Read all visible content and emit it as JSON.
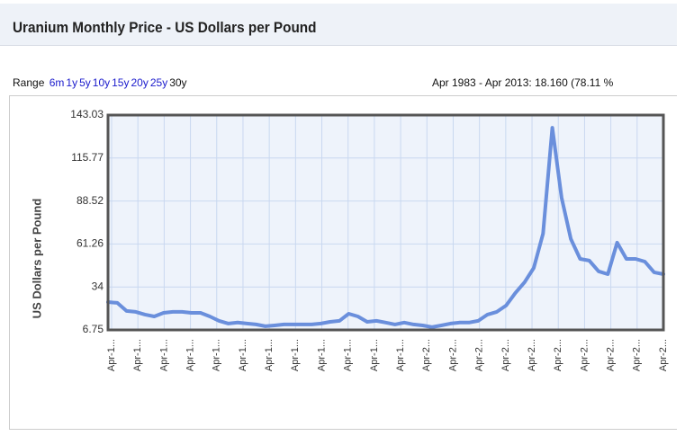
{
  "header": {
    "title": "Uranium Monthly Price - US Dollars per Pound"
  },
  "range_selector": {
    "label": "Range",
    "options": [
      "6m",
      "1y",
      "5y",
      "10y",
      "15y",
      "20y",
      "25y",
      "30y"
    ],
    "selected": 7
  },
  "summary": "Apr 1983 - Apr 2013: 18.160 (78.11 %",
  "chart_data": {
    "type": "line",
    "y_label": "US Dollars per Pound",
    "ylim": [
      6.75,
      143.03
    ],
    "yticks": [
      6.75,
      34,
      61.26,
      88.52,
      115.77,
      143.03
    ],
    "x_tick_labels": [
      "Apr-1...",
      "Apr-1...",
      "Apr-1...",
      "Apr-1...",
      "Apr-1...",
      "Apr-1...",
      "Apr-1...",
      "Apr-1...",
      "Apr-1...",
      "Apr-1...",
      "Apr-1...",
      "Apr-1...",
      "Apr-2...",
      "Apr-2...",
      "Apr-2...",
      "Apr-2...",
      "Apr-2...",
      "Apr-2...",
      "Apr-2...",
      "Apr-2...",
      "Apr-2...",
      "Apr-2..."
    ],
    "grid": true,
    "series": [
      {
        "name": "Uranium",
        "color": "#6a8fdc",
        "values": [
          24.4,
          23.9,
          18.8,
          18.2,
          16.5,
          15.3,
          17.6,
          18.2,
          18.2,
          17.6,
          17.6,
          15.3,
          12.5,
          10.8,
          11.4,
          10.8,
          10.2,
          9.1,
          9.6,
          10.2,
          10.2,
          10.2,
          10.2,
          10.8,
          11.9,
          12.5,
          17.0,
          15.3,
          11.9,
          12.5,
          11.4,
          10.2,
          11.4,
          10.2,
          9.6,
          8.5,
          9.6,
          10.8,
          11.4,
          11.4,
          12.5,
          16.5,
          18.2,
          22.2,
          30.2,
          37.0,
          46.1,
          67.8,
          135.0,
          90.6,
          64.4,
          51.8,
          50.7,
          43.9,
          42.1,
          62.1,
          51.8,
          51.8,
          50.1,
          43.3,
          42.1
        ]
      }
    ]
  }
}
